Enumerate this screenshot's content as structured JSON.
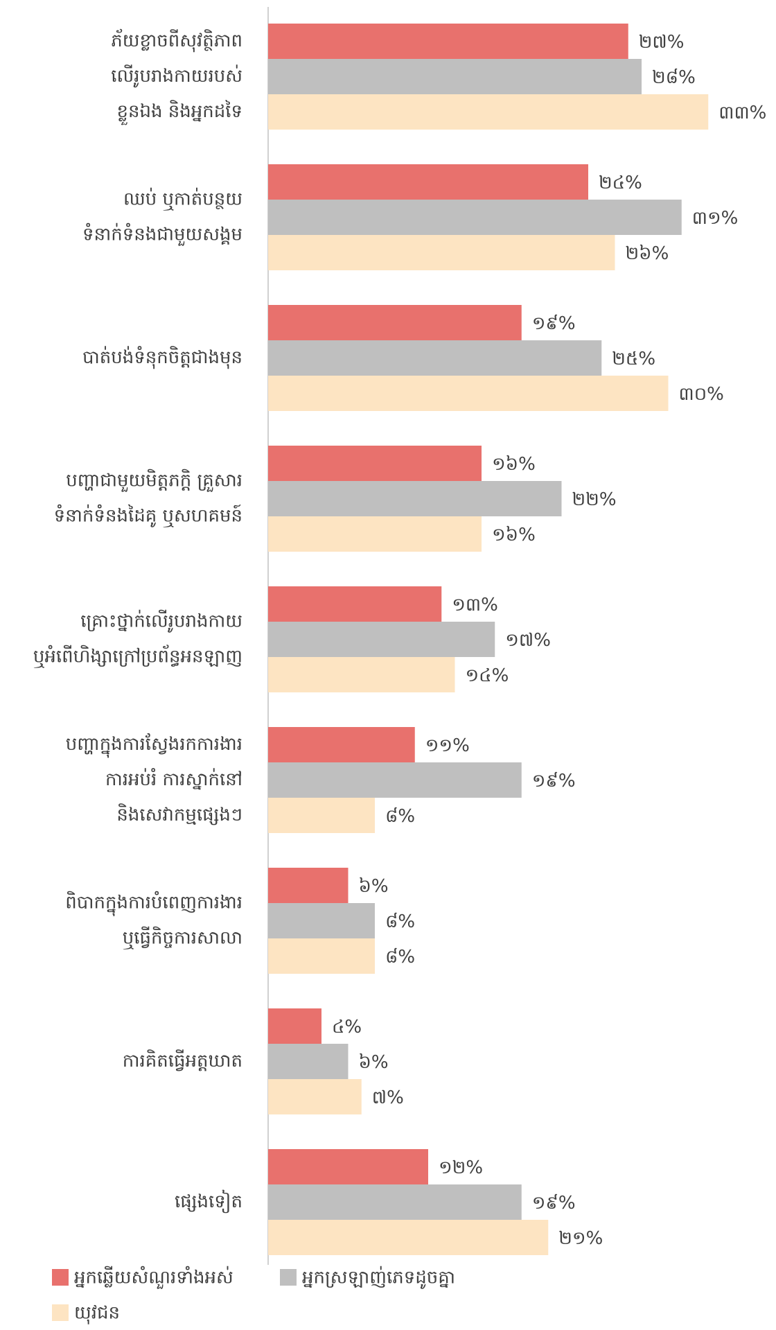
{
  "chart_data": {
    "type": "hbar",
    "categories": [
      [
        "ភ័យខ្លាចពីសុវត្ថិភាព",
        "លើរូបរាងកាយរបស់",
        "ខ្លួនឯង និងអ្នកដទៃ"
      ],
      [
        "ឈប់ ឬកាត់បន្ថយ",
        "ទំនាក់ទំនងជាមួយសង្គម"
      ],
      [
        "បាត់បង់ទំនុកចិត្តជាងមុន"
      ],
      [
        "បញ្ហាជាមួយមិត្តភក្តិ គ្រួសារ",
        "ទំនាក់ទំនងដៃគូ ឬសហគមន៍"
      ],
      [
        "គ្រោះថ្នាក់លើរូបរាងកាយ",
        "ឬអំពើហិង្សាក្រៅប្រព័ន្ធអនឡាញ"
      ],
      [
        "បញ្ហាក្នុងការស្វែងរកការងារ",
        "ការអប់រំ ការស្នាក់នៅ",
        "និងសេវាកម្មផ្សេងៗ"
      ],
      [
        "ពិបាកក្នុងការបំពេញការងារ",
        "ឬធ្វើកិច្ចការសាលា"
      ],
      [
        "ការគិតធ្វើអត្តឃាត"
      ],
      [
        "ផ្សេងទៀត"
      ]
    ],
    "series": [
      {
        "name": "អ្នកឆ្លើយសំណួរទាំងអស់",
        "color": "#e8716d",
        "values": [
          27,
          24,
          19,
          16,
          13,
          11,
          6,
          4,
          12
        ],
        "value_labels": [
          "២៧%",
          "២៤%",
          "១៩%",
          "១៦%",
          "១៣%",
          "១១%",
          "៦%",
          "៤%",
          "១២%"
        ]
      },
      {
        "name": "អ្នកស្រឡាញ់ភេទដូចគ្នា",
        "color": "#bfbfbf",
        "values": [
          28,
          31,
          25,
          22,
          17,
          19,
          8,
          6,
          19
        ],
        "value_labels": [
          "២៨%",
          "៣១%",
          "២៥%",
          "២២%",
          "១៧%",
          "១៩%",
          "៨%",
          "៦%",
          "១៩%"
        ]
      },
      {
        "name": "យុវជន",
        "color": "#fde4c2",
        "values": [
          33,
          26,
          30,
          16,
          14,
          8,
          8,
          7,
          21
        ],
        "value_labels": [
          "៣៣%",
          "២៦%",
          "៣០%",
          "១៦%",
          "១៤%",
          "៨%",
          "៨%",
          "៧%",
          "២១%"
        ]
      }
    ]
  }
}
